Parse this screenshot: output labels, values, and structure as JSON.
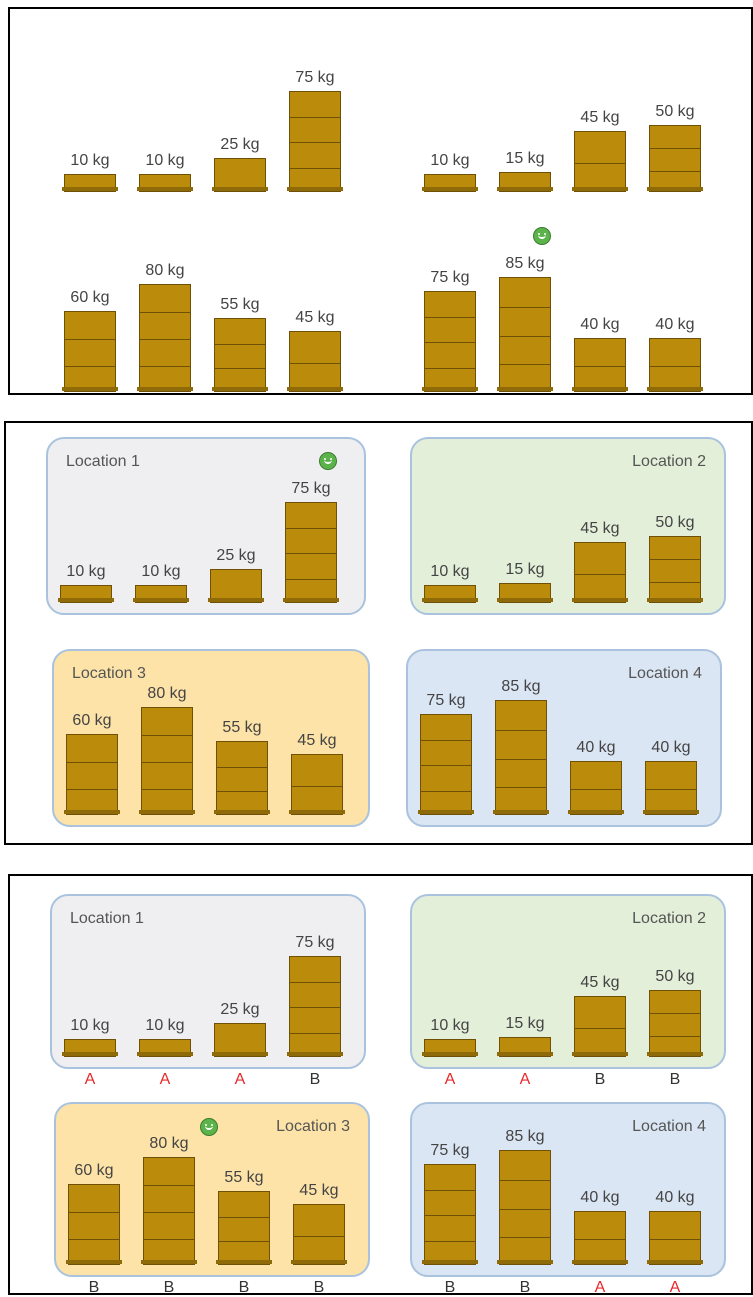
{
  "panels": [
    {
      "id": "unsorted",
      "groups": [
        {
          "title": "",
          "pallets": [
            {
              "label": "10 kg",
              "weight": 10
            },
            {
              "label": "10 kg",
              "weight": 10
            },
            {
              "label": "25 kg",
              "weight": 25
            },
            {
              "label": "75 kg",
              "weight": 75
            }
          ]
        },
        {
          "title": "",
          "pallets": [
            {
              "label": "10 kg",
              "weight": 10
            },
            {
              "label": "15 kg",
              "weight": 15
            },
            {
              "label": "45 kg",
              "weight": 45
            },
            {
              "label": "50 kg",
              "weight": 50
            }
          ]
        },
        {
          "title": "",
          "pallets": [
            {
              "label": "60 kg",
              "weight": 60
            },
            {
              "label": "80 kg",
              "weight": 80
            },
            {
              "label": "55 kg",
              "weight": 55
            },
            {
              "label": "45 kg",
              "weight": 45
            }
          ]
        },
        {
          "title": "",
          "pallets": [
            {
              "label": "75 kg",
              "weight": 75
            },
            {
              "label": "85 kg",
              "weight": 85
            },
            {
              "label": "40 kg",
              "weight": 40
            },
            {
              "label": "40 kg",
              "weight": 40
            }
          ],
          "smiley_on": 1
        }
      ]
    },
    {
      "id": "locations",
      "groups": [
        {
          "title": "Location 1",
          "bg": "#efeff1",
          "pallets": [
            {
              "label": "10 kg",
              "weight": 10
            },
            {
              "label": "10 kg",
              "weight": 10
            },
            {
              "label": "25 kg",
              "weight": 25
            },
            {
              "label": "75 kg",
              "weight": 75
            }
          ],
          "smiley_on": 3
        },
        {
          "title": "Location 2",
          "bg": "#e3efd9",
          "pallets": [
            {
              "label": "10 kg",
              "weight": 10
            },
            {
              "label": "15 kg",
              "weight": 15
            },
            {
              "label": "45 kg",
              "weight": 45
            },
            {
              "label": "50 kg",
              "weight": 50
            }
          ]
        },
        {
          "title": "Location 3",
          "bg": "#fde3a8",
          "pallets": [
            {
              "label": "60 kg",
              "weight": 60
            },
            {
              "label": "80 kg",
              "weight": 80
            },
            {
              "label": "55 kg",
              "weight": 55
            },
            {
              "label": "45 kg",
              "weight": 45
            }
          ]
        },
        {
          "title": "Location 4",
          "bg": "#dbe6f4",
          "pallets": [
            {
              "label": "75 kg",
              "weight": 75
            },
            {
              "label": "85 kg",
              "weight": 85
            },
            {
              "label": "40 kg",
              "weight": 40
            },
            {
              "label": "40 kg",
              "weight": 40
            }
          ]
        }
      ]
    },
    {
      "id": "classified",
      "groups": [
        {
          "title": "Location 1",
          "bg": "#efeff1",
          "pallets": [
            {
              "label": "10 kg",
              "weight": 10,
              "class": "A"
            },
            {
              "label": "10 kg",
              "weight": 10,
              "class": "A"
            },
            {
              "label": "25 kg",
              "weight": 25,
              "class": "A"
            },
            {
              "label": "75 kg",
              "weight": 75,
              "class": "B"
            }
          ]
        },
        {
          "title": "Location 2",
          "bg": "#e3efd9",
          "pallets": [
            {
              "label": "10 kg",
              "weight": 10,
              "class": "A"
            },
            {
              "label": "15 kg",
              "weight": 15,
              "class": "A"
            },
            {
              "label": "45 kg",
              "weight": 45,
              "class": "B"
            },
            {
              "label": "50 kg",
              "weight": 50,
              "class": "B"
            }
          ]
        },
        {
          "title": "Location 3",
          "bg": "#fde3a8",
          "pallets": [
            {
              "label": "60 kg",
              "weight": 60,
              "class": "B"
            },
            {
              "label": "80 kg",
              "weight": 80,
              "class": "B"
            },
            {
              "label": "55 kg",
              "weight": 55,
              "class": "B"
            },
            {
              "label": "45 kg",
              "weight": 45,
              "class": "B"
            }
          ],
          "smiley_title": true
        },
        {
          "title": "Location 4",
          "bg": "#dbe6f4",
          "pallets": [
            {
              "label": "75 kg",
              "weight": 75,
              "class": "B"
            },
            {
              "label": "85 kg",
              "weight": 85,
              "class": "B"
            },
            {
              "label": "40 kg",
              "weight": 40,
              "class": "A"
            },
            {
              "label": "40 kg",
              "weight": 40,
              "class": "A"
            }
          ]
        }
      ]
    }
  ],
  "colors": {
    "pallet": "#bb8c0c",
    "class_A": "#e8272a",
    "class_B": "#333333",
    "smiley": "#5cb24b"
  }
}
